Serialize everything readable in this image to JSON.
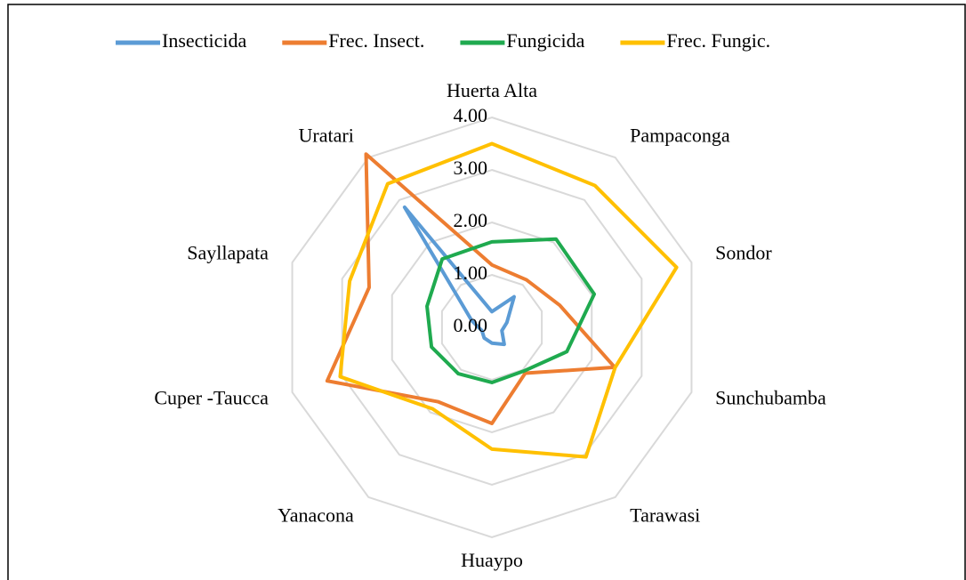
{
  "chart_data": {
    "type": "radar",
    "categories": [
      "Huerta Alta",
      "Pampaconga",
      "Sondor",
      "Sunchubamba",
      "Tarawasi",
      "Huaypo",
      "Yanacona",
      "Cuper -Taucca",
      "Sayllapata",
      "Uratari"
    ],
    "series": [
      {
        "name": "Insecticida",
        "color": "#5b9bd5",
        "values": [
          0.3,
          0.72,
          0.3,
          0.2,
          0.4,
          0.3,
          0.25,
          0.2,
          0.4,
          2.83
        ]
      },
      {
        "name": "Frec. Insect.",
        "color": "#ed7d31",
        "values": [
          1.19,
          1.12,
          1.36,
          2.46,
          1.08,
          1.83,
          1.75,
          3.3,
          2.46,
          4.08
        ]
      },
      {
        "name": "Fungicida",
        "color": "#1faa4f",
        "values": [
          1.63,
          2.08,
          2.05,
          1.5,
          1.03,
          1.05,
          1.09,
          1.21,
          1.3,
          1.61
        ]
      },
      {
        "name": "Frec. Fungic.",
        "color": "#ffc000",
        "values": [
          3.5,
          3.34,
          3.7,
          2.47,
          3.05,
          2.32,
          1.92,
          3.04,
          2.85,
          3.38
        ]
      }
    ],
    "ylim": [
      0,
      4
    ],
    "yticks": [
      {
        "value": 0,
        "label": "0.00"
      },
      {
        "value": 1,
        "label": "1.00"
      },
      {
        "value": 2,
        "label": "2.00"
      },
      {
        "value": 3,
        "label": "3.00"
      },
      {
        "value": 4,
        "label": "4.00"
      }
    ],
    "grid": true,
    "legend": "top"
  }
}
